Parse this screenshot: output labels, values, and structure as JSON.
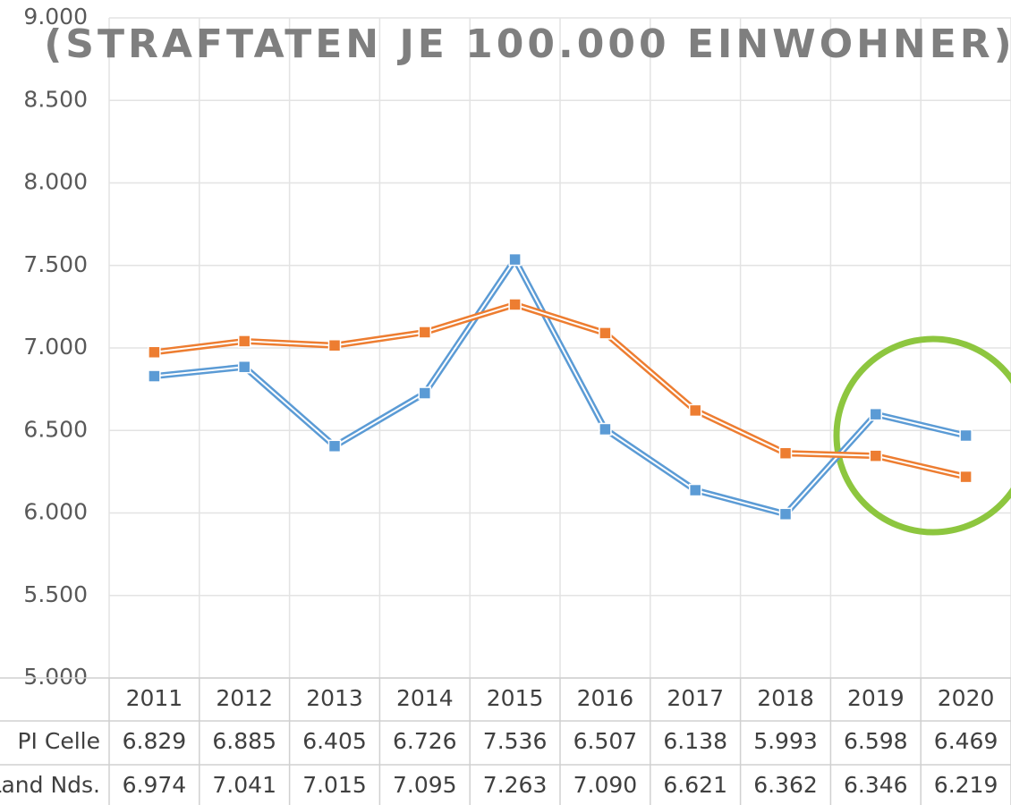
{
  "chart_data": {
    "type": "line",
    "title": "(STRAFTATEN JE 100.000 EINWOHNER)",
    "categories": [
      "2011",
      "2012",
      "2013",
      "2014",
      "2015",
      "2016",
      "2017",
      "2018",
      "2019",
      "2020"
    ],
    "series": [
      {
        "name": "PI Celle",
        "color": "#5b9bd5",
        "values": [
          6829,
          6885,
          6405,
          6726,
          7536,
          6507,
          6138,
          5993,
          6598,
          6469
        ],
        "value_labels": [
          "6.829",
          "6.885",
          "6.405",
          "6.726",
          "7.536",
          "6.507",
          "6.138",
          "5.993",
          "6.598",
          "6.469"
        ]
      },
      {
        "name": "Land Nds.",
        "color": "#ed7d31",
        "values": [
          6974,
          7041,
          7015,
          7095,
          7263,
          7090,
          6621,
          6362,
          6346,
          6219
        ],
        "value_labels": [
          "6.974",
          "7.041",
          "7.015",
          "7.095",
          "7.263",
          "7.090",
          "6.621",
          "6.362",
          "6.346",
          "6.219"
        ]
      }
    ],
    "ylim": [
      5000,
      9000
    ],
    "yticks": [
      {
        "value": 5000,
        "label": "5.000"
      },
      {
        "value": 5500,
        "label": "5.500"
      },
      {
        "value": 6000,
        "label": "6.000"
      },
      {
        "value": 6500,
        "label": "6.500"
      },
      {
        "value": 7000,
        "label": "7.000"
      },
      {
        "value": 7500,
        "label": "7.500"
      },
      {
        "value": 8000,
        "label": "8.000"
      },
      {
        "value": 8500,
        "label": "8.500"
      },
      {
        "value": 9000,
        "label": "9.000"
      }
    ],
    "grid": true
  }
}
